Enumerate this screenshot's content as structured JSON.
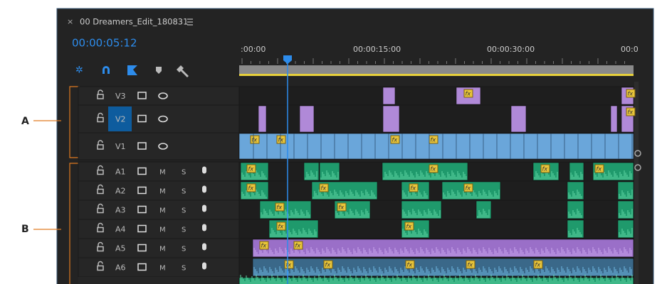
{
  "panel": {
    "close": "×",
    "title": "00 Dreamers_Edit_180831",
    "timecode": "00:00:05:12"
  },
  "ruler": [
    ":00:00",
    "00:00:15:00",
    "00:00:30:00",
    "00:0"
  ],
  "video_tracks": [
    {
      "name": "V3"
    },
    {
      "name": "V2"
    },
    {
      "name": "V1"
    }
  ],
  "audio_tracks": [
    {
      "name": "A1",
      "mute": "M",
      "solo": "S"
    },
    {
      "name": "A2",
      "mute": "M",
      "solo": "S"
    },
    {
      "name": "A3",
      "mute": "M",
      "solo": "S"
    },
    {
      "name": "A4",
      "mute": "M",
      "solo": "S"
    },
    {
      "name": "A5",
      "mute": "M",
      "solo": "S"
    },
    {
      "name": "A6",
      "mute": "M",
      "solo": "S"
    }
  ],
  "callouts": [
    {
      "label": "A"
    },
    {
      "label": "B"
    }
  ],
  "fx_badge": "fx"
}
